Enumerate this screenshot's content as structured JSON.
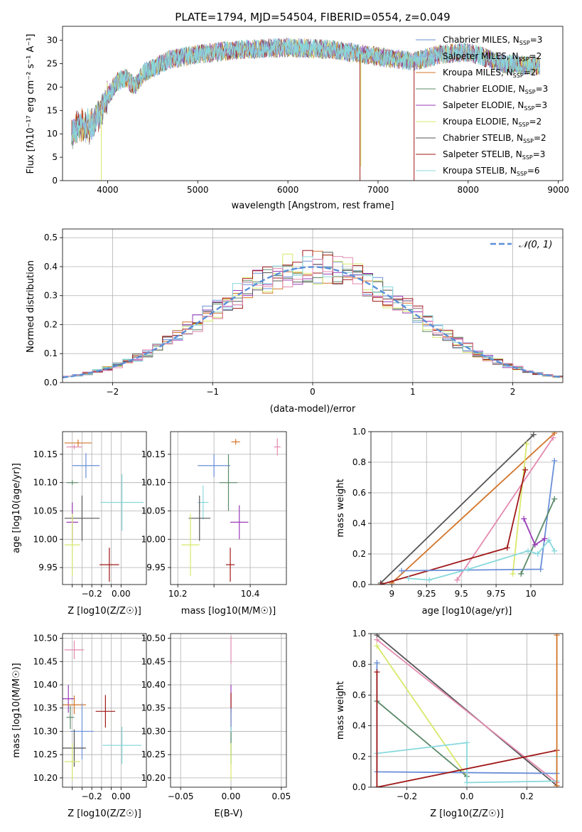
{
  "figure_title": "PLATE=1794, MJD=54504, FIBERID=0554, z=0.049",
  "series_colors": {
    "Chabrier MILES": "#6a8fd8",
    "Salpeter MILES": "#8fa6e8",
    "Kroupa MILES": "#d2752a",
    "Chabrier ELODIE": "#5b8b68",
    "Salpeter ELODIE": "#9a3bb8",
    "Kroupa ELODIE": "#d8e86a",
    "Chabrier STELIB": "#555555",
    "Salpeter STELIB": "#a01818",
    "Kroupa STELIB": "#88d8dc",
    "Extra (pink)": "#e48ab0",
    "Normal curve": "#5b8fd8"
  },
  "chart_data": [
    {
      "type": "line",
      "title": "PLATE=1794, MJD=54504, FIBERID=0554, z=0.049",
      "xlabel": "wavelength [Angstrom, rest frame]",
      "ylabel": "Flux [fλ10⁻¹⁷ erg cm⁻² s⁻¹ A⁻¹]",
      "xlim": [
        3500,
        9050
      ],
      "ylim": [
        0,
        33
      ],
      "xticks": [
        4000,
        5000,
        6000,
        7000,
        8000,
        9000
      ],
      "yticks": [
        0,
        5,
        10,
        15,
        20,
        25,
        30
      ],
      "legend_placement": "top-right",
      "grid": false,
      "continuum": {
        "x": [
          3600,
          3700,
          3800,
          3900,
          4000,
          4100,
          4200,
          4300,
          4400,
          4500,
          4700,
          5000,
          5200,
          5500,
          6000,
          6500,
          7000,
          7400,
          7700,
          8000,
          8400,
          8800
        ],
        "y": [
          10,
          12,
          11.5,
          14,
          18,
          21,
          22,
          20,
          23,
          24,
          26,
          27,
          27.5,
          28,
          28.5,
          28,
          26.5,
          25.5,
          27,
          27.5,
          25,
          24.5
        ]
      },
      "dips": [
        {
          "x": 3930,
          "y_min": 0,
          "color": "Kroupa ELODIE"
        },
        {
          "x": 6800,
          "y_min": 0,
          "color": "Salpeter STELIB"
        },
        {
          "x": 6810,
          "y_min": 3,
          "color": "Kroupa ELODIE"
        },
        {
          "x": 7400,
          "y_min": 0,
          "color": "Salpeter STELIB"
        }
      ],
      "series": [
        {
          "name": "Chabrier MILES, N_SSP=3",
          "label_main": "Chabrier MILES, N",
          "label_sub": "SSP",
          "label_tail": "=3",
          "color": "Chabrier MILES"
        },
        {
          "name": "Salpeter MILES, N_SSP=2",
          "label_main": "Salpeter MILES, N",
          "label_sub": "SSP",
          "label_tail": "=2",
          "color": "Salpeter MILES"
        },
        {
          "name": "Kroupa MILES, N_SSP=2",
          "label_main": "Kroupa MILES, N",
          "label_sub": "SSP",
          "label_tail": "=2",
          "color": "Kroupa MILES"
        },
        {
          "name": "Chabrier ELODIE, N_SSP=3",
          "label_main": "Chabrier ELODIE, N",
          "label_sub": "SSP",
          "label_tail": "=3",
          "color": "Chabrier ELODIE"
        },
        {
          "name": "Salpeter ELODIE, N_SSP=3",
          "label_main": "Salpeter ELODIE, N",
          "label_sub": "SSP",
          "label_tail": "=3",
          "color": "Salpeter ELODIE"
        },
        {
          "name": "Kroupa ELODIE, N_SSP=2",
          "label_main": "Kroupa ELODIE, N",
          "label_sub": "SSP",
          "label_tail": "=2",
          "color": "Kroupa ELODIE"
        },
        {
          "name": "Chabrier STELIB, N_SSP=2",
          "label_main": "Chabrier STELIB, N",
          "label_sub": "SSP",
          "label_tail": "=2",
          "color": "Chabrier STELIB"
        },
        {
          "name": "Salpeter STELIB, N_SSP=3",
          "label_main": "Salpeter STELIB, N",
          "label_sub": "SSP",
          "label_tail": "=3",
          "color": "Salpeter STELIB"
        },
        {
          "name": "Kroupa STELIB, N_SSP=6",
          "label_main": "Kroupa STELIB, N",
          "label_sub": "SSP",
          "label_tail": "=6",
          "color": "Kroupa STELIB"
        }
      ]
    },
    {
      "type": "histogram",
      "xlabel": "(data-model)/error",
      "ylabel": "Normed distribution",
      "xlim": [
        -2.5,
        2.5
      ],
      "ylim": [
        0,
        0.53
      ],
      "xticks": [
        -2,
        -1,
        0,
        1,
        2
      ],
      "yticks": [
        0,
        0.1,
        0.2,
        0.3,
        0.4,
        0.5
      ],
      "grid": true,
      "bin_width": 0.1,
      "bin_start": -2.5,
      "normal_curve": {
        "label": "𝒩(0, 1)",
        "mu": 0,
        "sigma": 1,
        "legend_placement": "top-right"
      },
      "histogram_colors": [
        "Chabrier MILES",
        "Kroupa MILES",
        "Chabrier ELODIE",
        "Salpeter ELODIE",
        "Kroupa ELODIE",
        "Chabrier STELIB",
        "Salpeter STELIB",
        "Kroupa STELIB",
        "Extra (pink)"
      ]
    },
    {
      "type": "errorbar",
      "panel": "age-vs-Z",
      "xlabel": "Z [log10(Z/Z☉)]",
      "ylabel": "age  [log10(age/yr)]",
      "xlim": [
        -0.3,
        0.13
      ],
      "ylim": [
        9.92,
        10.19
      ],
      "xticks": [
        -0.25,
        -0.2,
        -0.15,
        -0.1,
        -0.05,
        0.0
      ],
      "xticklabels": [
        "",
        "",
        "−0.2",
        "",
        "",
        "0.00"
      ],
      "yticks": [
        9.95,
        10.0,
        10.05,
        10.1,
        10.15
      ],
      "grid": true,
      "points": [
        {
          "color": "Kroupa MILES",
          "x": -0.22,
          "xerr": 0.07,
          "y": 10.17,
          "yerr": 0.006
        },
        {
          "color": "Extra (pink)",
          "x": -0.24,
          "xerr": 0.04,
          "y": 10.163,
          "yerr": 0.004
        },
        {
          "color": "Chabrier MILES",
          "x": -0.18,
          "xerr": 0.07,
          "y": 10.13,
          "yerr": 0.022
        },
        {
          "color": "Chabrier ELODIE",
          "x": -0.25,
          "xerr": 0.03,
          "y": 10.1,
          "yerr": 0.004
        },
        {
          "color": "Kroupa STELIB",
          "x": 0.005,
          "xerr": 0.11,
          "y": 10.065,
          "yerr": 0.05
        },
        {
          "color": "Chabrier STELIB",
          "x": -0.2,
          "xerr": 0.09,
          "y": 10.037,
          "yerr": 0.04
        },
        {
          "color": "Salpeter ELODIE",
          "x": -0.25,
          "xerr": 0.03,
          "y": 10.03,
          "yerr": 0.035
        },
        {
          "color": "Kroupa ELODIE",
          "x": -0.25,
          "xerr": 0.04,
          "y": 9.99,
          "yerr": 0.055
        },
        {
          "color": "Salpeter STELIB",
          "x": -0.06,
          "xerr": 0.05,
          "y": 9.955,
          "yerr": 0.03
        }
      ]
    },
    {
      "type": "errorbar",
      "panel": "age-vs-mass",
      "xlabel": "mass [log10(M/M☉)]",
      "ylabel": "",
      "xlim": [
        10.18,
        10.5
      ],
      "ylim": [
        9.92,
        10.19
      ],
      "xticks": [
        10.2,
        10.3,
        10.4
      ],
      "xticklabels": [
        "10.2",
        "",
        "10.4"
      ],
      "yticks": [
        9.95,
        10.0,
        10.05,
        10.1,
        10.15
      ],
      "grid": true,
      "points": [
        {
          "color": "Kroupa MILES",
          "x": 10.36,
          "xerr": 0.012,
          "y": 10.172,
          "yerr": 0.005
        },
        {
          "color": "Extra (pink)",
          "x": 10.475,
          "xerr": 0.009,
          "y": 10.163,
          "yerr": 0.015
        },
        {
          "color": "Chabrier MILES",
          "x": 10.3,
          "xerr": 0.045,
          "y": 10.13,
          "yerr": 0.02
        },
        {
          "color": "Chabrier ELODIE",
          "x": 10.34,
          "xerr": 0.025,
          "y": 10.1,
          "yerr": 0.05
        },
        {
          "color": "Kroupa STELIB",
          "x": 10.27,
          "xerr": 0.015,
          "y": 10.065,
          "yerr": 0.03
        },
        {
          "color": "Chabrier STELIB",
          "x": 10.26,
          "xerr": 0.03,
          "y": 10.037,
          "yerr": 0.04
        },
        {
          "color": "Salpeter ELODIE",
          "x": 10.37,
          "xerr": 0.025,
          "y": 10.03,
          "yerr": 0.03
        },
        {
          "color": "Kroupa ELODIE",
          "x": 10.235,
          "xerr": 0.025,
          "y": 9.99,
          "yerr": 0.055
        },
        {
          "color": "Salpeter STELIB",
          "x": 10.345,
          "xerr": 0.012,
          "y": 9.955,
          "yerr": 0.03
        }
      ]
    },
    {
      "type": "line",
      "panel": "mass-weight-vs-age",
      "xlabel": "age  [log10(age/yr)]",
      "ylabel": "mass weight",
      "xlim": [
        8.85,
        10.23
      ],
      "ylim": [
        0,
        1
      ],
      "xticks": [
        9.0,
        9.25,
        9.5,
        9.75,
        10.0
      ],
      "yticks": [
        0,
        0.2,
        0.4,
        0.6,
        0.8,
        1.0
      ],
      "grid": true,
      "series": [
        {
          "color": "Chabrier STELIB",
          "x": [
            8.92,
            10.02
          ],
          "y": [
            0.01,
            0.98
          ]
        },
        {
          "color": "Kroupa MILES",
          "x": [
            9.0,
            10.17
          ],
          "y": [
            0.01,
            0.99
          ]
        },
        {
          "color": "Extra (pink)",
          "x": [
            9.47,
            10.16
          ],
          "y": [
            0.03,
            0.96
          ]
        },
        {
          "color": "Kroupa ELODIE",
          "x": [
            9.87,
            9.97
          ],
          "y": [
            0.07,
            0.92
          ]
        },
        {
          "color": "Salpeter STELIB",
          "x": [
            8.92,
            9.83,
            9.96
          ],
          "y": [
            0.0,
            0.24,
            0.75
          ]
        },
        {
          "color": "Chabrier MILES",
          "x": [
            9.07,
            10.07,
            10.17
          ],
          "y": [
            0.09,
            0.1,
            0.81
          ]
        },
        {
          "color": "Chabrier ELODIE",
          "x": [
            9.93,
            10.17
          ],
          "y": [
            0.07,
            0.56
          ]
        },
        {
          "color": "Salpeter ELODIE",
          "x": [
            9.95,
            10.03,
            10.1
          ],
          "y": [
            0.43,
            0.26,
            0.3
          ]
        },
        {
          "color": "Kroupa STELIB",
          "x": [
            9.12,
            9.27,
            9.55,
            9.98,
            10.05,
            10.13,
            10.17
          ],
          "y": [
            0.04,
            0.03,
            0.1,
            0.22,
            0.2,
            0.29,
            0.22
          ]
        }
      ]
    },
    {
      "type": "errorbar",
      "panel": "mass-vs-Z",
      "xlabel": "Z [log10(Z/Z☉)]",
      "ylabel": "mass [log10(M/M☉)]",
      "xlim": [
        -0.3,
        0.13
      ],
      "ylim": [
        10.18,
        10.51
      ],
      "xticks": [
        -0.25,
        -0.2,
        -0.15,
        -0.1,
        -0.05,
        0.0
      ],
      "xticklabels": [
        "",
        "",
        "−0.2",
        "",
        "",
        "0.00"
      ],
      "yticks": [
        10.2,
        10.25,
        10.3,
        10.35,
        10.4,
        10.45,
        10.5
      ],
      "grid": true,
      "points": [
        {
          "color": "Extra (pink)",
          "x": -0.24,
          "xerr": 0.05,
          "y": 10.475,
          "yerr": 0.02
        },
        {
          "color": "Salpeter ELODIE",
          "x": -0.27,
          "xerr": 0.03,
          "y": 10.37,
          "yerr": 0.03
        },
        {
          "color": "Kroupa MILES",
          "x": -0.24,
          "xerr": 0.06,
          "y": 10.357,
          "yerr": 0.02
        },
        {
          "color": "Salpeter STELIB",
          "x": -0.08,
          "xerr": 0.05,
          "y": 10.343,
          "yerr": 0.035
        },
        {
          "color": "Chabrier ELODIE",
          "x": -0.26,
          "xerr": 0.02,
          "y": 10.33,
          "yerr": 0.025
        },
        {
          "color": "Chabrier MILES",
          "x": -0.2,
          "xerr": 0.06,
          "y": 10.3,
          "yerr": 0.06
        },
        {
          "color": "Kroupa STELIB",
          "x": 0.005,
          "xerr": 0.1,
          "y": 10.27,
          "yerr": 0.04
        },
        {
          "color": "Chabrier STELIB",
          "x": -0.24,
          "xerr": 0.06,
          "y": 10.264,
          "yerr": 0.04
        },
        {
          "color": "Kroupa ELODIE",
          "x": -0.25,
          "xerr": 0.04,
          "y": 10.235,
          "yerr": 0.04
        }
      ]
    },
    {
      "type": "errorbar",
      "panel": "mass-vs-ebv",
      "xlabel": "E(B-V)",
      "ylabel": "",
      "xlim": [
        -0.06,
        0.055
      ],
      "ylim": [
        10.18,
        10.51
      ],
      "xticks": [
        -0.05,
        0.0,
        0.05
      ],
      "xticklabels": [
        "−0.05",
        "0.00",
        "0.05"
      ],
      "yticks": [
        10.2,
        10.25,
        10.3,
        10.35,
        10.4,
        10.45,
        10.5
      ],
      "grid": true,
      "points": [
        {
          "color": "Extra (pink)",
          "x": 0.0,
          "xerr": 0.0,
          "y": 10.475,
          "yerr": 0.03
        },
        {
          "color": "Salpeter ELODIE",
          "x": 0.0,
          "xerr": 0.0,
          "y": 10.37,
          "yerr": 0.03
        },
        {
          "color": "Salpeter STELIB",
          "x": 0.0,
          "xerr": 0.0,
          "y": 10.343,
          "yerr": 0.04
        },
        {
          "color": "Chabrier MILES",
          "x": 0.0,
          "xerr": 0.0,
          "y": 10.3,
          "yerr": 0.05
        },
        {
          "color": "Kroupa STELIB",
          "x": 0.0,
          "xerr": 0.0,
          "y": 10.27,
          "yerr": 0.04
        },
        {
          "color": "Chabrier ELODIE",
          "x": 0.0,
          "xerr": 0.0,
          "y": 10.264,
          "yerr": 0.035
        },
        {
          "color": "Kroupa ELODIE",
          "x": 0.0,
          "xerr": 0.0,
          "y": 10.235,
          "yerr": 0.04
        }
      ]
    },
    {
      "type": "line",
      "panel": "mass-weight-vs-Z",
      "xlabel": "Z [log10(Z/Z☉)]",
      "ylabel": "mass weight",
      "xlim": [
        -0.32,
        0.32
      ],
      "ylim": [
        0,
        1
      ],
      "xticks": [
        -0.2,
        0.0,
        0.2
      ],
      "xticklabels": [
        "−0.2",
        "0.0",
        "0.2"
      ],
      "yticks": [
        0,
        0.2,
        0.4,
        0.6,
        0.8,
        1.0
      ],
      "grid": true,
      "series": [
        {
          "color": "Chabrier STELIB",
          "x": [
            -0.3,
            0.3
          ],
          "y": [
            0.99,
            0.01
          ]
        },
        {
          "color": "Extra (pink)",
          "x": [
            -0.3,
            0.3
          ],
          "y": [
            0.96,
            0.03
          ]
        },
        {
          "color": "Kroupa ELODIE",
          "x": [
            -0.3,
            0.0
          ],
          "y": [
            0.92,
            0.07
          ]
        },
        {
          "color": "Chabrier ELODIE",
          "x": [
            -0.3,
            0.0
          ],
          "y": [
            0.56,
            0.07
          ]
        },
        {
          "color": "Chabrier MILES",
          "x": [
            -0.3,
            -0.3,
            0.3
          ],
          "y": [
            0.81,
            0.1,
            0.09
          ]
        },
        {
          "color": "Kroupa STELIB",
          "x": [
            -0.3,
            0.0,
            0.0,
            0.3,
            0.3
          ],
          "y": [
            0.22,
            0.29,
            0.03,
            0.04,
            0.2
          ]
        },
        {
          "color": "Salpeter STELIB",
          "x": [
            -0.3,
            -0.3,
            0.3
          ],
          "y": [
            0.75,
            0.0,
            0.24
          ]
        },
        {
          "color": "Kroupa MILES",
          "x": [
            0.3,
            0.3
          ],
          "y": [
            0.01,
            0.99
          ]
        }
      ]
    }
  ]
}
